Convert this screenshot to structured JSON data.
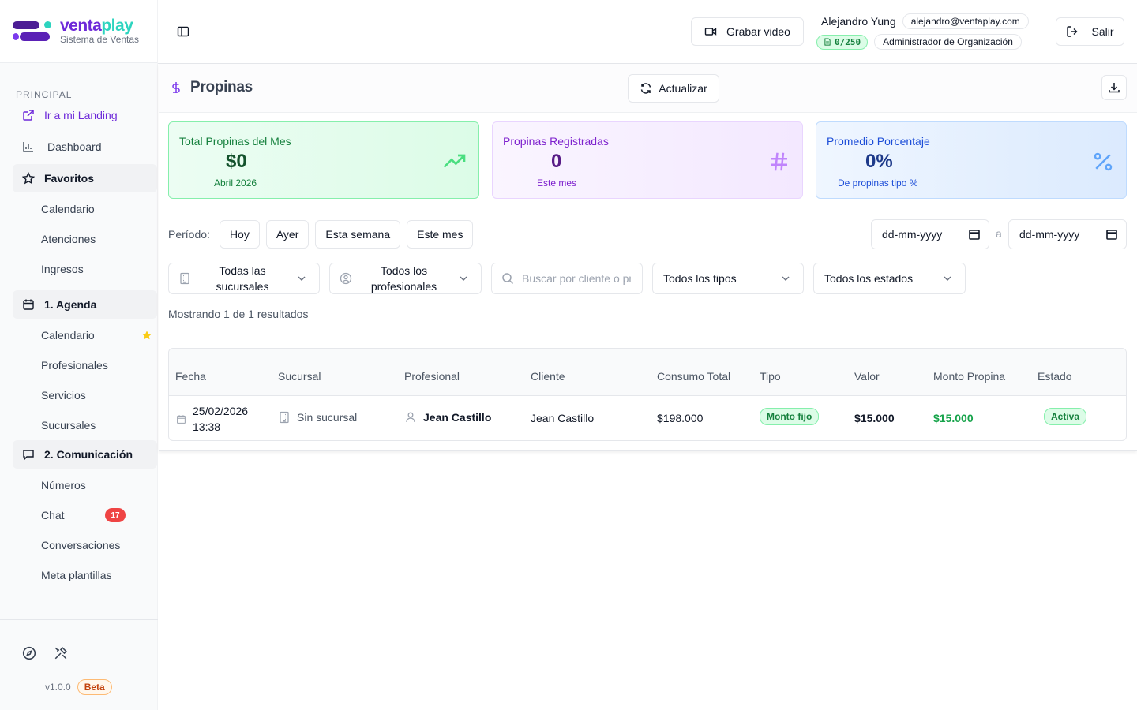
{
  "brand": {
    "name_part1": "venta",
    "name_part2": "play",
    "subtitle": "Sistema de Ventas"
  },
  "sidebar": {
    "section": "PRINCIPAL",
    "landing": "Ir a mi Landing",
    "dashboard": "Dashboard",
    "favorites": {
      "label": "Favoritos",
      "items": [
        "Calendario",
        "Atenciones",
        "Ingresos"
      ]
    },
    "agenda": {
      "label": "1. Agenda",
      "items": [
        "Calendario",
        "Profesionales",
        "Servicios",
        "Sucursales"
      ]
    },
    "communication": {
      "label": "2. Comunicación",
      "items": [
        "Números",
        "Chat",
        "Conversaciones",
        "Meta plantillas"
      ],
      "chat_badge": "17"
    },
    "version": "v1.0.0",
    "beta": "Beta"
  },
  "header": {
    "record_label": "Grabar video",
    "user_name": "Alejandro Yung",
    "user_email": "alejandro@ventaplay.com",
    "credits": "0/250",
    "role": "Administrador de Organización",
    "logout_label": "Salir"
  },
  "page": {
    "title": "Propinas",
    "refresh_label": "Actualizar"
  },
  "cards": [
    {
      "title": "Total Propinas del Mes",
      "value": "$0",
      "sub": "Abril 2026",
      "icon": "trending-up-icon"
    },
    {
      "title": "Propinas Registradas",
      "value": "0",
      "sub": "Este mes",
      "icon": "hash-icon"
    },
    {
      "title": "Promedio Porcentaje",
      "value": "0%",
      "sub": "De propinas tipo %",
      "icon": "percent-icon"
    }
  ],
  "period": {
    "label": "Período:",
    "options": [
      "Hoy",
      "Ayer",
      "Esta semana",
      "Este mes"
    ],
    "date_from_placeholder": "dd-mm-yyyy",
    "date_to_placeholder": "dd-mm-yyyy",
    "separator": "a"
  },
  "filters": {
    "branch": "Todas las sucursales",
    "professional": "Todos los profesionales",
    "search_placeholder": "Buscar por cliente o profesional",
    "type": "Todos los tipos",
    "status": "Todos los estados"
  },
  "results_text": "Mostrando 1 de 1 resultados",
  "table": {
    "headers": [
      "Fecha",
      "Sucursal",
      "Profesional",
      "Cliente",
      "Consumo Total",
      "Tipo",
      "Valor",
      "Monto Propina",
      "Estado"
    ],
    "rows": [
      {
        "date": "25/02/2026",
        "time": "13:38",
        "branch": "Sin sucursal",
        "professional": "Jean Castillo",
        "client": "Jean Castillo",
        "consumption": "$198.000",
        "type": "Monto fijo",
        "value": "$15.000",
        "tip": "$15.000",
        "status": "Activa"
      }
    ]
  },
  "colors": {
    "brand_purple": "#6d28d9",
    "brand_teal": "#2dd4bf",
    "success": "#16a34a",
    "danger": "#ef4444"
  }
}
